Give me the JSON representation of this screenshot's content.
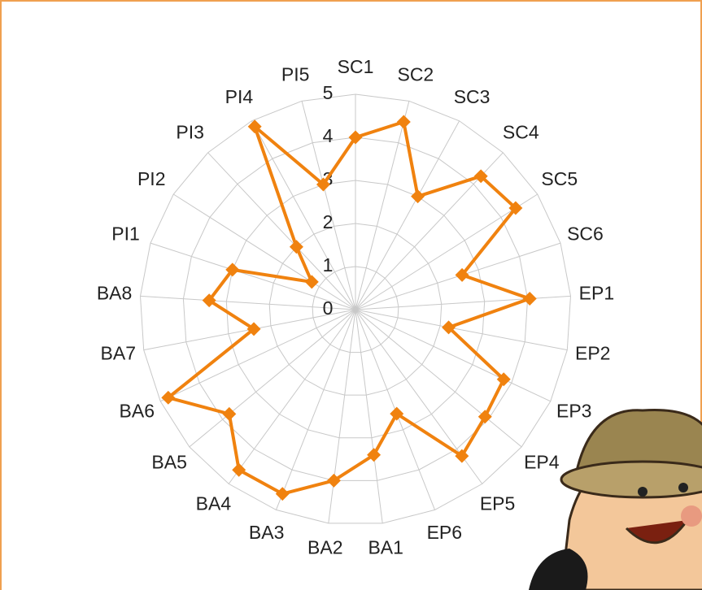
{
  "chart_data": {
    "type": "radar",
    "categories": [
      "SC1",
      "SC2",
      "SC3",
      "SC4",
      "SC5",
      "SC6",
      "EP1",
      "EP2",
      "EP3",
      "EP4",
      "EP5",
      "EP6",
      "BA1",
      "BA2",
      "BA3",
      "BA4",
      "BA5",
      "BA6",
      "BA7",
      "BA8",
      "PI1",
      "PI2",
      "PI3",
      "PI4",
      "PI5"
    ],
    "values": [
      4.0,
      4.5,
      3.0,
      4.25,
      4.4,
      2.6,
      4.05,
      2.2,
      3.8,
      3.9,
      4.2,
      2.6,
      3.4,
      4.0,
      4.6,
      4.6,
      3.8,
      4.8,
      2.4,
      3.4,
      3.0,
      1.2,
      2.0,
      4.85,
      3.0
    ],
    "color": "#f0820f",
    "ylim": [
      0,
      5
    ],
    "yticks": [
      0,
      1,
      2,
      3,
      4,
      5
    ],
    "grid": true
  }
}
